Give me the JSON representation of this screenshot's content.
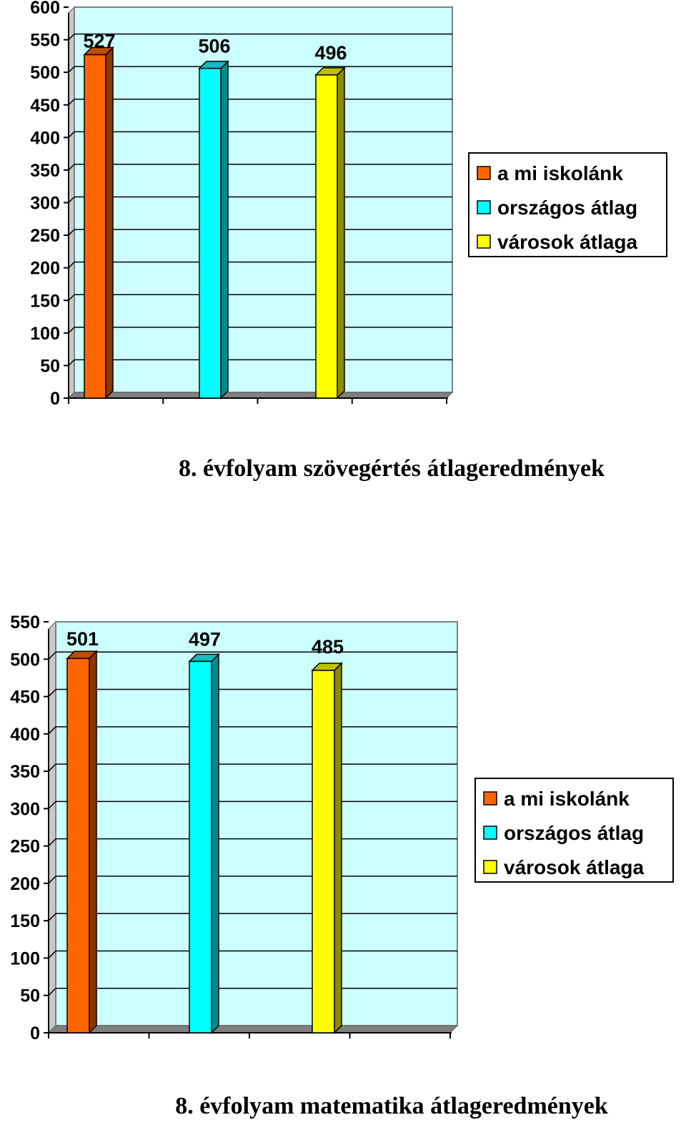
{
  "chart_data": [
    {
      "type": "bar",
      "style": "3d-column",
      "title": "8. évfolyam szövegértés átlageredmények",
      "ylim": [
        0,
        600
      ],
      "yticks": [
        "0",
        "50",
        "100",
        "150",
        "200",
        "250",
        "300",
        "350",
        "400",
        "450",
        "500",
        "550",
        "600"
      ],
      "grid": true,
      "plot_background": "#ccffff",
      "legend_position": "right",
      "series": [
        {
          "name": "a mi iskolánk",
          "value": 527,
          "label": "527",
          "color": "#ff6600"
        },
        {
          "name": "országos átlag",
          "value": 506,
          "label": "506",
          "color": "#00ffff"
        },
        {
          "name": "városok átlaga",
          "value": 496,
          "label": "496",
          "color": "#ffff00"
        }
      ]
    },
    {
      "type": "bar",
      "style": "3d-column",
      "title": "8. évfolyam matematika átlageredmények",
      "ylim": [
        0,
        550
      ],
      "yticks": [
        "0",
        "50",
        "100",
        "150",
        "200",
        "250",
        "300",
        "350",
        "400",
        "450",
        "500",
        "550"
      ],
      "grid": true,
      "plot_background": "#ccffff",
      "legend_position": "right",
      "series": [
        {
          "name": "a mi iskolánk",
          "value": 501,
          "label": "501",
          "color": "#ff6600"
        },
        {
          "name": "országos átlag",
          "value": 497,
          "label": "497",
          "color": "#00ffff"
        },
        {
          "name": "városok átlaga",
          "value": 485,
          "label": "485",
          "color": "#ffff00"
        }
      ]
    }
  ]
}
